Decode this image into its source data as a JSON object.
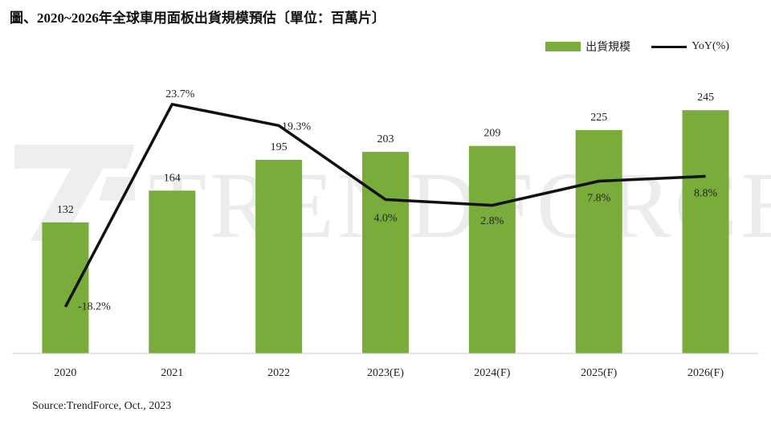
{
  "title": "圖、2020~2026年全球車用面板出貨規模預估〔單位：百萬片〕",
  "legend": {
    "bar_label": "出貨規模",
    "line_label": "YoY(%)"
  },
  "watermark": "TRENDFORCE",
  "source": "Source:TrendForce, Oct., 2023",
  "colors": {
    "bar": "#7aac3c",
    "line": "#111111"
  },
  "chart_data": {
    "type": "bar+line",
    "categories": [
      "2020",
      "2021",
      "2022",
      "2023(E)",
      "2024(F)",
      "2025(F)",
      "2026(F)"
    ],
    "series": [
      {
        "name": "出貨規模",
        "type": "bar",
        "values": [
          132,
          164,
          195,
          203,
          209,
          225,
          245
        ],
        "labels": [
          "132",
          "164",
          "195",
          "203",
          "209",
          "225",
          "245"
        ]
      },
      {
        "name": "YoY(%)",
        "type": "line",
        "values": [
          -18.2,
          23.7,
          19.3,
          4.0,
          2.8,
          7.8,
          8.8
        ],
        "labels": [
          "-18.2%",
          "23.7%",
          "19.3%",
          "4.0%",
          "2.8%",
          "7.8%",
          "8.8%"
        ]
      }
    ],
    "bar_ylim": [
      0,
      270
    ],
    "line_ylim": [
      -30,
      30
    ],
    "grid": false,
    "legend_position": "top-right"
  }
}
